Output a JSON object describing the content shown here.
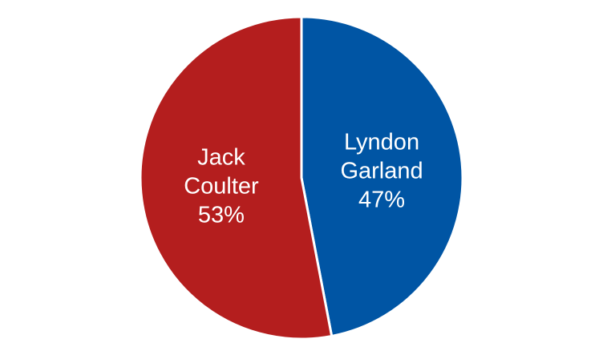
{
  "chart_data": {
    "type": "pie",
    "start_angle_deg": 0,
    "direction": "clockwise",
    "slices": [
      {
        "name": "Lyndon Garland",
        "label_lines": [
          "Lyndon",
          "Garland"
        ],
        "value": 47,
        "value_label": "47%",
        "color": "#0055A4"
      },
      {
        "name": "Jack Coulter",
        "label_lines": [
          "Jack",
          "Coulter"
        ],
        "value": 53,
        "value_label": "53%",
        "color": "#B41E1E"
      }
    ]
  }
}
